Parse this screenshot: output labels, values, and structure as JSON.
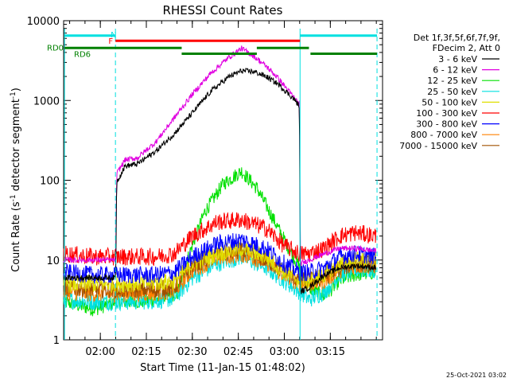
{
  "chart_data": {
    "type": "line",
    "title": "RHESSI Count Rates",
    "xlabel": "Start Time (11-Jan-15 01:48:02)",
    "ylabel_main": "Count Rate (s",
    "ylabel_sup1": "-1",
    "ylabel_mid": " detector segment",
    "ylabel_sup2": "-1",
    "ylabel_end": ")",
    "x_axis": {
      "unit": "minutes since 01:48:02",
      "min": 0,
      "max": 104,
      "ticks": [
        {
          "label": "02:00",
          "value": 11.97
        },
        {
          "label": "02:15",
          "value": 26.97
        },
        {
          "label": "02:30",
          "value": 41.97
        },
        {
          "label": "02:45",
          "value": 56.97
        },
        {
          "label": "03:00",
          "value": 71.97
        },
        {
          "label": "03:15",
          "value": 86.97
        }
      ]
    },
    "y_axis": {
      "scale": "log",
      "min": 1,
      "max": 10000,
      "ticks": [
        {
          "label": "1",
          "value": 1
        },
        {
          "label": "10",
          "value": 10
        },
        {
          "label": "100",
          "value": 100
        },
        {
          "label": "1000",
          "value": 1000
        },
        {
          "label": "10000",
          "value": 10000
        }
      ]
    },
    "legend": {
      "placement": "right",
      "header": [
        "Det 1f,3f,5f,6f,7f,9f,",
        "FDecim 2, Att 0"
      ]
    },
    "series": [
      {
        "name": "3 - 6 keV",
        "color": "#000000",
        "x": [
          0,
          17,
          17.3,
          20,
          24,
          30,
          36,
          42,
          48,
          54,
          58,
          62,
          66,
          70,
          75,
          76.9,
          77.2,
          80,
          85,
          90,
          95,
          102
        ],
        "y": [
          6,
          6,
          95,
          150,
          160,
          230,
          380,
          700,
          1300,
          2000,
          2350,
          2300,
          2000,
          1600,
          1050,
          850,
          4,
          4.5,
          6.5,
          8,
          8.5,
          8
        ]
      },
      {
        "name": "6 - 12 keV",
        "color": "#e000e0",
        "x": [
          0,
          17,
          17.3,
          20,
          24,
          30,
          36,
          42,
          48,
          54,
          58,
          62,
          66,
          70,
          75,
          76.9,
          77.2,
          80,
          85,
          90,
          95,
          102
        ],
        "y": [
          10,
          10,
          120,
          180,
          190,
          300,
          600,
          1200,
          2200,
          3500,
          4500,
          3600,
          2700,
          1900,
          1100,
          900,
          9,
          10,
          12,
          14,
          14,
          13
        ]
      },
      {
        "name": "12 - 25 keV",
        "color": "#00e000",
        "x": [
          0,
          10,
          17,
          25,
          30,
          37,
          41,
          46,
          52,
          58,
          63,
          68,
          73,
          77,
          80,
          85,
          90,
          95,
          102
        ],
        "y": [
          3,
          2.4,
          3,
          3,
          3.2,
          3.8,
          12,
          40,
          90,
          130,
          80,
          35,
          15,
          8,
          4.5,
          3.5,
          5.5,
          6.5,
          7
        ]
      },
      {
        "name": "25 - 50 keV",
        "color": "#00e0e0",
        "x": [
          0,
          10,
          20,
          30,
          36,
          42,
          50,
          58,
          66,
          72,
          77,
          80,
          85,
          90,
          95,
          102
        ],
        "y": [
          3.2,
          3,
          3,
          3.1,
          3.3,
          6,
          9,
          11,
          8,
          5.5,
          4,
          3.2,
          4,
          6.5,
          7.5,
          7.5
        ]
      },
      {
        "name": "50 - 100 keV",
        "color": "#e0e000",
        "x": [
          0,
          10,
          20,
          30,
          36,
          42,
          50,
          58,
          66,
          72,
          77,
          80,
          85,
          90,
          95,
          102
        ],
        "y": [
          5,
          5,
          5,
          5.2,
          5.4,
          9,
          12,
          14,
          11,
          7,
          5.5,
          5.5,
          6.5,
          9,
          10,
          10
        ]
      },
      {
        "name": "100 - 300 keV",
        "color": "#ff0000",
        "x": [
          0,
          10,
          20,
          30,
          36,
          42,
          50,
          58,
          66,
          72,
          77,
          80,
          85,
          90,
          95,
          102
        ],
        "y": [
          12,
          11,
          11,
          11,
          12,
          20,
          30,
          32,
          25,
          15,
          12,
          12,
          14,
          20,
          22,
          20
        ]
      },
      {
        "name": "300 - 800 keV",
        "color": "#0000ff",
        "x": [
          0,
          10,
          20,
          30,
          36,
          42,
          50,
          58,
          66,
          72,
          77,
          80,
          85,
          90,
          95,
          102
        ],
        "y": [
          7,
          6.5,
          6.5,
          6.5,
          7,
          11,
          16,
          18,
          14,
          9,
          7,
          7,
          8,
          11,
          12,
          11
        ]
      },
      {
        "name": "800 - 7000 keV",
        "color": "#ff8000",
        "x": [
          0,
          10,
          20,
          30,
          36,
          42,
          50,
          58,
          66,
          72,
          77,
          80,
          85,
          90,
          95,
          102
        ],
        "y": [
          4,
          3.8,
          3.8,
          3.9,
          4.1,
          7.5,
          10.5,
          12,
          9.5,
          6.5,
          5,
          5,
          5.5,
          7.5,
          8.5,
          8.5
        ]
      },
      {
        "name": "7000 - 15000 keV",
        "color": "#a05000",
        "x": [
          0,
          10,
          20,
          30,
          36,
          42,
          50,
          58,
          66,
          72,
          77,
          80,
          85,
          90,
          95,
          102
        ],
        "y": [
          4.5,
          4.3,
          4.2,
          4.3,
          4.5,
          8.5,
          11.5,
          13,
          10,
          7,
          5.5,
          5.5,
          6,
          8,
          9,
          9
        ]
      }
    ],
    "vertical_lines": [
      {
        "x": 0.3,
        "style": "solid",
        "color": "#00e0e0"
      },
      {
        "x": 16.9,
        "style": "dashed",
        "color": "#00e0e0"
      },
      {
        "x": 77.1,
        "style": "solid",
        "color": "#00e0e0"
      },
      {
        "x": 102.2,
        "style": "dashed",
        "color": "#00e0e0"
      }
    ],
    "status_bars": [
      {
        "label": "N",
        "label_color": "#00e0e0",
        "color": "#00e0e0",
        "y": 6500,
        "segments": [
          [
            0.3,
            16.9
          ],
          [
            77.1,
            102.2
          ]
        ]
      },
      {
        "label": "F",
        "label_color": "#ff0000",
        "color": "#ff0000",
        "y": 5600,
        "segments": [
          [
            16.9,
            77.1
          ]
        ]
      },
      {
        "label": "RD0",
        "label_color": "#008000",
        "color": "#008000",
        "y": 4550,
        "segments": [
          [
            0.3,
            38.5
          ],
          [
            63.0,
            80.0
          ]
        ]
      },
      {
        "label": "RD6",
        "label_color": "#008000",
        "color": "#008000",
        "y": 3850,
        "segments": [
          [
            38.5,
            63.0
          ],
          [
            80.5,
            102.2
          ]
        ]
      }
    ],
    "timestamp": "25-Oct-2021 03:02"
  }
}
